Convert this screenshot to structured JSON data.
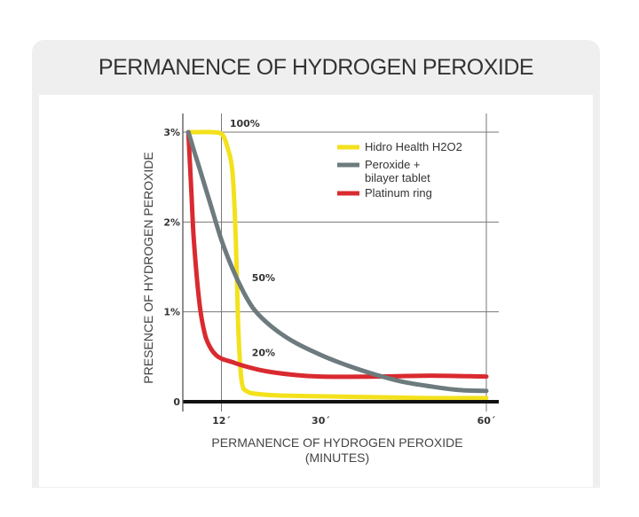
{
  "card": {
    "title": "PERMANENCE OF HYDROGEN PEROXIDE"
  },
  "chart_data": {
    "type": "line",
    "title": "PERMANENCE OF HYDROGEN PEROXIDE",
    "xlabel": "PERMANENCE OF HYDROGEN PEROXIDE",
    "xlabel_line2": "(MINUTES)",
    "ylabel": "PRESENCE OF HYDROGEN PEROXIDE",
    "xlim": [
      5,
      60
    ],
    "ylim": [
      0,
      3
    ],
    "x_ticks": [
      {
        "value": 12,
        "label": "12´"
      },
      {
        "value": 30,
        "label": "30´"
      },
      {
        "value": 60,
        "label": "60´"
      }
    ],
    "y_ticks": [
      {
        "value": 0,
        "label": "0"
      },
      {
        "value": 1,
        "label": "1%"
      },
      {
        "value": 2,
        "label": "2%"
      },
      {
        "value": 3,
        "label": "3%"
      }
    ],
    "grid": true,
    "legend_position": "top-right",
    "annotations": [
      {
        "text": "100%",
        "x": 13.5,
        "y": 3.1
      },
      {
        "text": "50%",
        "x": 17.5,
        "y": 1.38
      },
      {
        "text": "20%",
        "x": 17.5,
        "y": 0.55
      }
    ],
    "series": [
      {
        "name": "Hidro Health H2O2",
        "color": "#f3e11c",
        "x": [
          6,
          8,
          10,
          12,
          13,
          14,
          14.6,
          15,
          15.4,
          15.8,
          16.5,
          18,
          22,
          30,
          40,
          50,
          60
        ],
        "y": [
          3.0,
          3.0,
          3.0,
          2.98,
          2.85,
          2.55,
          1.8,
          0.9,
          0.4,
          0.18,
          0.12,
          0.09,
          0.07,
          0.06,
          0.05,
          0.04,
          0.04
        ]
      },
      {
        "name": "Peroxide + bilayer tablet",
        "color": "#6d7b7e",
        "x": [
          6,
          7,
          8,
          10,
          12,
          14,
          16,
          18,
          21,
          25,
          30,
          35,
          40,
          45,
          50,
          55,
          60
        ],
        "y": [
          3.0,
          2.8,
          2.6,
          2.2,
          1.8,
          1.48,
          1.22,
          1.02,
          0.84,
          0.67,
          0.52,
          0.4,
          0.3,
          0.22,
          0.17,
          0.13,
          0.12
        ]
      },
      {
        "name": "Platinum ring",
        "color": "#d92a30",
        "x": [
          6,
          6.5,
          7,
          8,
          9,
          10,
          11,
          12,
          14,
          16,
          20,
          25,
          30,
          40,
          50,
          60
        ],
        "y": [
          3.0,
          2.4,
          1.8,
          1.1,
          0.75,
          0.6,
          0.52,
          0.48,
          0.44,
          0.4,
          0.34,
          0.3,
          0.28,
          0.28,
          0.29,
          0.28
        ]
      }
    ]
  }
}
